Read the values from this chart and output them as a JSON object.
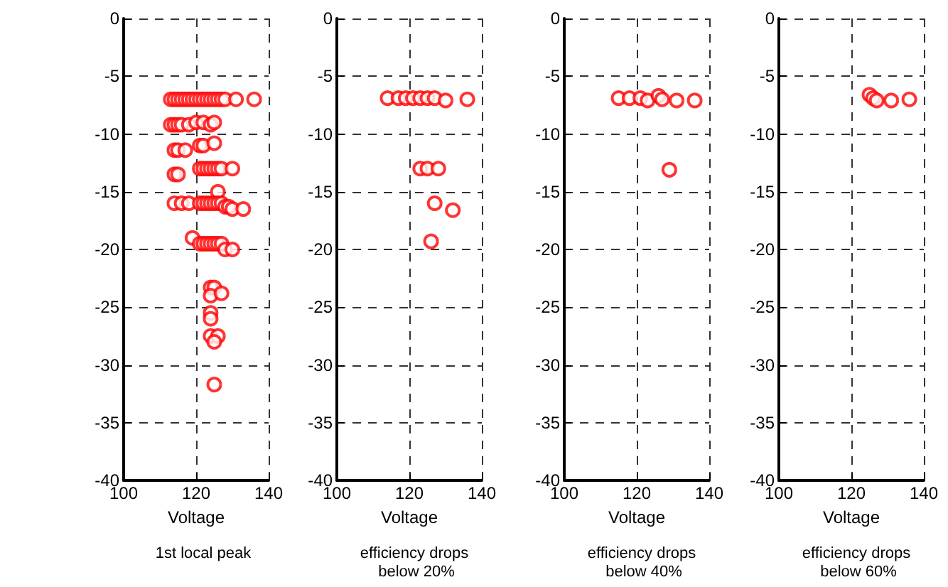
{
  "chart_data": [
    {
      "type": "scatter",
      "title": "1st local peak",
      "xlabel": "Voltage",
      "xlim": [
        100,
        140
      ],
      "xticks": [
        100,
        120,
        140
      ],
      "ylim": [
        -40,
        0
      ],
      "yticks": [
        -40,
        -35,
        -30,
        -25,
        -20,
        -15,
        -10,
        -5,
        0
      ],
      "grid": true,
      "marker": "circle",
      "series": [
        {
          "color": "#ff0000",
          "x": [
            113,
            114,
            115,
            116,
            117,
            118,
            119,
            120,
            121,
            122,
            123,
            124,
            125,
            126,
            127,
            128,
            131,
            136,
            113,
            114,
            115,
            116,
            118,
            120,
            122,
            124,
            125,
            114,
            115,
            117,
            121,
            122,
            125,
            114,
            115,
            121,
            122,
            123,
            124,
            125,
            126,
            127,
            130,
            126,
            114,
            116,
            118,
            121,
            122,
            123,
            124,
            125,
            126,
            127,
            128,
            129,
            130,
            133,
            119,
            121,
            122,
            123,
            124,
            125,
            126,
            127,
            128,
            130,
            124,
            125,
            124,
            127,
            124,
            124,
            124,
            126,
            125,
            125
          ],
          "values": [
            -7,
            -7,
            -7,
            -7,
            -7,
            -7,
            -7,
            -7,
            -7,
            -7,
            -7,
            -7,
            -7,
            -7,
            -7,
            -7,
            -7,
            -7,
            -9.2,
            -9.2,
            -9.2,
            -9.2,
            -9.2,
            -9,
            -9,
            -9.2,
            -9,
            -11.4,
            -11.4,
            -11.4,
            -11,
            -11,
            -10.8,
            -13.5,
            -13.5,
            -13,
            -13,
            -13,
            -13,
            -13,
            -13,
            -13,
            -13,
            -15,
            -16,
            -16,
            -16,
            -16,
            -16,
            -16,
            -16,
            -16,
            -16,
            -16,
            -16.3,
            -16.3,
            -16.5,
            -16.5,
            -19,
            -19.5,
            -19.5,
            -19.5,
            -19.5,
            -19.5,
            -19.5,
            -19.5,
            -20,
            -20,
            -23.3,
            -23.3,
            -24,
            -23.8,
            -25.5,
            -26,
            -27.5,
            -27.5,
            -28,
            -31.7
          ]
        }
      ]
    },
    {
      "type": "scatter",
      "title": "efficiency drops below 20%",
      "xlabel": "Voltage",
      "xlim": [
        100,
        140
      ],
      "xticks": [
        100,
        120,
        140
      ],
      "ylim": [
        -40,
        0
      ],
      "yticks": [
        -40,
        -35,
        -30,
        -25,
        -20,
        -15,
        -10,
        -5,
        0
      ],
      "grid": true,
      "marker": "circle",
      "series": [
        {
          "color": "#ff0000",
          "x": [
            114,
            117,
            119,
            121,
            123,
            125,
            127,
            130,
            136,
            123,
            125,
            128,
            127,
            132,
            126
          ],
          "values": [
            -6.9,
            -6.9,
            -6.9,
            -6.9,
            -6.9,
            -6.9,
            -6.9,
            -7.1,
            -7,
            -13,
            -13,
            -13,
            -16,
            -16.6,
            -19.3
          ]
        }
      ]
    },
    {
      "type": "scatter",
      "title": "efficiency drops below 40%",
      "xlabel": "Voltage",
      "xlim": [
        100,
        140
      ],
      "xticks": [
        100,
        120,
        140
      ],
      "ylim": [
        -40,
        0
      ],
      "yticks": [
        -40,
        -35,
        -30,
        -25,
        -20,
        -15,
        -10,
        -5,
        0
      ],
      "grid": true,
      "marker": "circle",
      "series": [
        {
          "color": "#ff0000",
          "x": [
            115,
            118,
            121,
            123,
            126,
            127,
            131,
            136,
            129
          ],
          "values": [
            -6.9,
            -6.9,
            -6.9,
            -7.1,
            -6.7,
            -7,
            -7.1,
            -7.1,
            -13.1
          ]
        }
      ]
    },
    {
      "type": "scatter",
      "title": "efficiency drops below 60%",
      "xlabel": "Voltage",
      "xlim": [
        100,
        140
      ],
      "xticks": [
        100,
        120,
        140
      ],
      "ylim": [
        -40,
        0
      ],
      "yticks": [
        -40,
        -35,
        -30,
        -25,
        -20,
        -15,
        -10,
        -5,
        0
      ],
      "grid": true,
      "marker": "circle",
      "series": [
        {
          "color": "#ff0000",
          "x": [
            125,
            126,
            127,
            131,
            136
          ],
          "values": [
            -6.6,
            -6.9,
            -7.1,
            -7.1,
            -7
          ]
        }
      ]
    }
  ]
}
